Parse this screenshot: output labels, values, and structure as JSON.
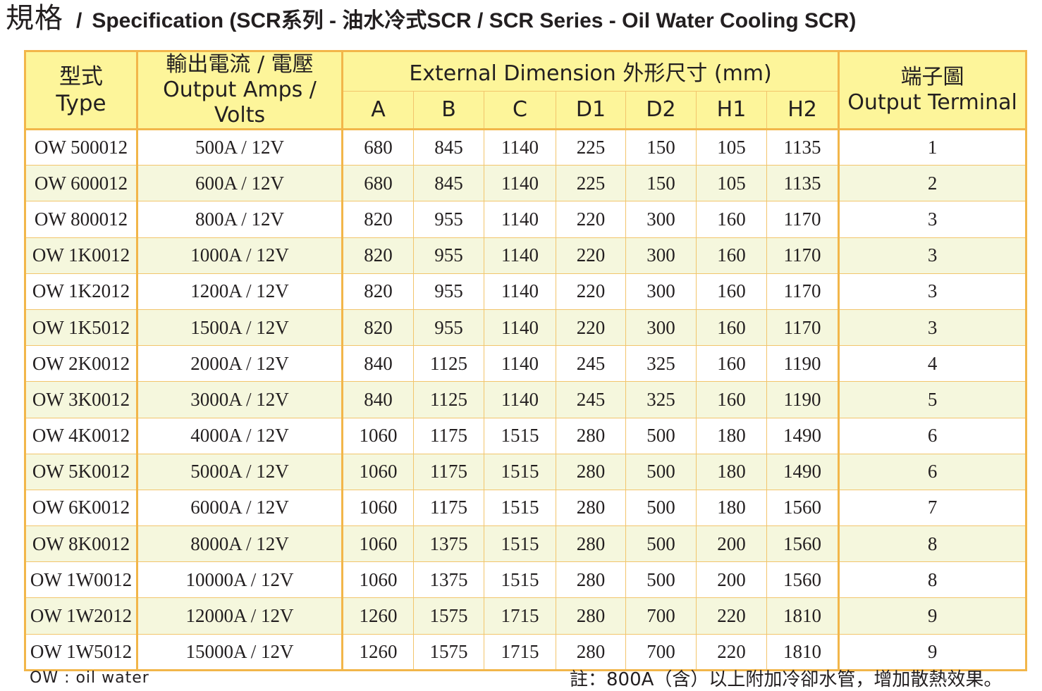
{
  "title": {
    "cn": "規格",
    "sep": "/",
    "en": "Specification (SCR系列 - 油水冷式SCR / SCR Series - Oil Water Cooling SCR)"
  },
  "table": {
    "headers": {
      "type_cn": "型式",
      "type_en": "Type",
      "output_cn": "輸出電流 / 電壓",
      "output_en": "Output Amps / Volts",
      "dimension": "External Dimension 外形尺寸 (mm)",
      "terminal_cn": "端子圖",
      "terminal_en": "Output Terminal",
      "dims": [
        "A",
        "B",
        "C",
        "D1",
        "D2",
        "H1",
        "H2"
      ]
    },
    "rows": [
      [
        "OW 500012",
        "500A / 12V",
        "680",
        "845",
        "1140",
        "225",
        "150",
        "105",
        "1135",
        "1"
      ],
      [
        "OW 600012",
        "600A / 12V",
        "680",
        "845",
        "1140",
        "225",
        "150",
        "105",
        "1135",
        "2"
      ],
      [
        "OW 800012",
        "800A / 12V",
        "820",
        "955",
        "1140",
        "220",
        "300",
        "160",
        "1170",
        "3"
      ],
      [
        "OW 1K0012",
        "1000A / 12V",
        "820",
        "955",
        "1140",
        "220",
        "300",
        "160",
        "1170",
        "3"
      ],
      [
        "OW 1K2012",
        "1200A / 12V",
        "820",
        "955",
        "1140",
        "220",
        "300",
        "160",
        "1170",
        "3"
      ],
      [
        "OW 1K5012",
        "1500A / 12V",
        "820",
        "955",
        "1140",
        "220",
        "300",
        "160",
        "1170",
        "3"
      ],
      [
        "OW 2K0012",
        "2000A / 12V",
        "840",
        "1125",
        "1140",
        "245",
        "325",
        "160",
        "1190",
        "4"
      ],
      [
        "OW 3K0012",
        "3000A / 12V",
        "840",
        "1125",
        "1140",
        "245",
        "325",
        "160",
        "1190",
        "5"
      ],
      [
        "OW 4K0012",
        "4000A / 12V",
        "1060",
        "1175",
        "1515",
        "280",
        "500",
        "180",
        "1490",
        "6"
      ],
      [
        "OW 5K0012",
        "5000A / 12V",
        "1060",
        "1175",
        "1515",
        "280",
        "500",
        "180",
        "1490",
        "6"
      ],
      [
        "OW 6K0012",
        "6000A / 12V",
        "1060",
        "1175",
        "1515",
        "280",
        "500",
        "180",
        "1560",
        "7"
      ],
      [
        "OW 8K0012",
        "8000A / 12V",
        "1060",
        "1375",
        "1515",
        "280",
        "500",
        "200",
        "1560",
        "8"
      ],
      [
        "OW 1W0012",
        "10000A / 12V",
        "1060",
        "1375",
        "1515",
        "280",
        "500",
        "200",
        "1560",
        "8"
      ],
      [
        "OW 1W2012",
        "12000A / 12V",
        "1260",
        "1575",
        "1715",
        "280",
        "700",
        "220",
        "1810",
        "9"
      ],
      [
        "OW 1W5012",
        "15000A / 12V",
        "1260",
        "1575",
        "1715",
        "280",
        "700",
        "220",
        "1810",
        "9"
      ]
    ]
  },
  "notes": {
    "abbreviation": "OW : oil water",
    "remark": "註：800A（含）以上附加冷卻水管，增加散熱效果。"
  },
  "colors": {
    "header_bg": "#fdf59a",
    "alt_row_bg": "#f5f7dd",
    "border": "#f2b64a"
  }
}
